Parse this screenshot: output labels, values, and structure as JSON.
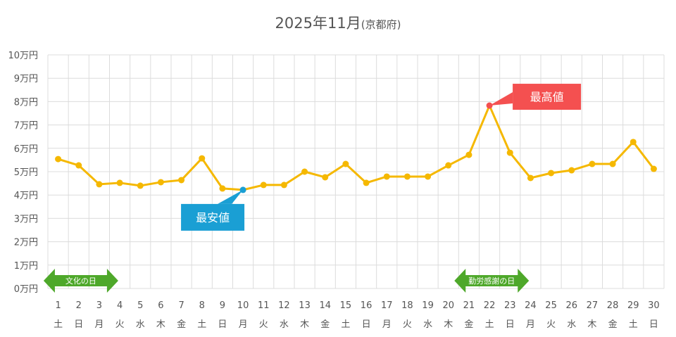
{
  "chart_data": {
    "type": "line",
    "title": "2025年11月",
    "subtitle": "(京都府)",
    "xlabel": "",
    "ylabel": "",
    "ylim": [
      0,
      100000
    ],
    "y_ticks": [
      "0万円",
      "1万円",
      "2万円",
      "3万円",
      "4万円",
      "5万円",
      "6万円",
      "7万円",
      "8万円",
      "9万円",
      "10万円"
    ],
    "categories": [
      "1",
      "2",
      "3",
      "4",
      "5",
      "6",
      "7",
      "8",
      "9",
      "10",
      "11",
      "12",
      "13",
      "14",
      "15",
      "16",
      "17",
      "18",
      "19",
      "20",
      "21",
      "22",
      "23",
      "24",
      "25",
      "26",
      "27",
      "28",
      "29",
      "30"
    ],
    "weekdays": [
      "土",
      "日",
      "月",
      "火",
      "水",
      "木",
      "金",
      "土",
      "日",
      "月",
      "火",
      "水",
      "木",
      "金",
      "土",
      "日",
      "月",
      "火",
      "水",
      "木",
      "金",
      "土",
      "日",
      "月",
      "火",
      "水",
      "木",
      "金",
      "土",
      "日"
    ],
    "series": [
      {
        "name": "price",
        "color": "#f5b800",
        "values": [
          55400,
          52700,
          44600,
          45200,
          44000,
          45500,
          46400,
          55700,
          42800,
          42200,
          44300,
          44300,
          50000,
          47600,
          53300,
          45200,
          47900,
          47900,
          47900,
          52700,
          57200,
          78300,
          58100,
          47300,
          49400,
          50600,
          53300,
          53300,
          62700,
          51200
        ]
      }
    ],
    "grid": true,
    "legend": "none",
    "annotations": [
      {
        "label": "最安値",
        "day": 10,
        "color": "#1a9fd4"
      },
      {
        "label": "最高値",
        "day": 22,
        "color": "#f45050"
      }
    ],
    "holidays": [
      {
        "label": "文化の日",
        "day": 3,
        "color": "#4ea82a"
      },
      {
        "label": "勤労感謝の日",
        "day": 23,
        "color": "#4ea82a"
      }
    ]
  }
}
